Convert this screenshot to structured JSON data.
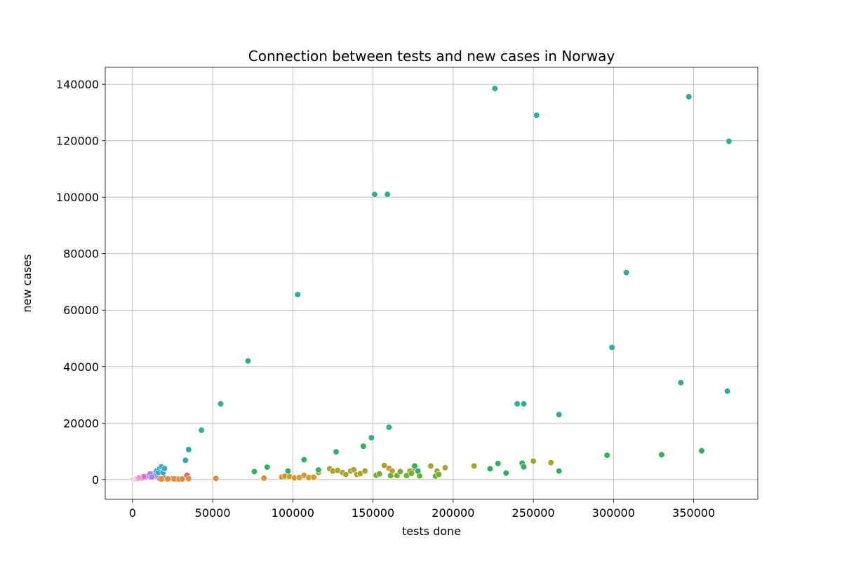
{
  "chart_data": {
    "type": "scatter",
    "title": "Connection between tests and new cases in Norway",
    "xlabel": "tests done",
    "ylabel": "new cases",
    "xlim": [
      -17000,
      390000
    ],
    "ylim": [
      -7000,
      146000
    ],
    "xticks": [
      0,
      50000,
      100000,
      150000,
      200000,
      250000,
      300000,
      350000
    ],
    "yticks": [
      0,
      20000,
      40000,
      60000,
      80000,
      100000,
      120000,
      140000
    ],
    "grid": true,
    "legend": "none",
    "groups": [
      {
        "color": "#e8665a",
        "points": [
          [
            9000,
            900
          ],
          [
            17000,
            300
          ],
          [
            20000,
            500
          ],
          [
            22000,
            300
          ],
          [
            25000,
            300
          ],
          [
            28000,
            200
          ],
          [
            34000,
            1500
          ]
        ]
      },
      {
        "color": "#e08a3a",
        "points": [
          [
            18000,
            200
          ],
          [
            22000,
            200
          ],
          [
            26000,
            200
          ],
          [
            29000,
            100
          ],
          [
            31000,
            200
          ],
          [
            35000,
            300
          ],
          [
            52000,
            400
          ],
          [
            82000,
            500
          ]
        ]
      },
      {
        "color": "#cc9a30",
        "points": [
          [
            93000,
            900
          ],
          [
            95000,
            1200
          ],
          [
            98000,
            1000
          ],
          [
            101000,
            600
          ],
          [
            104000,
            700
          ],
          [
            107000,
            1500
          ],
          [
            110000,
            700
          ],
          [
            113000,
            800
          ],
          [
            116000,
            2500
          ],
          [
            160000,
            4000
          ],
          [
            162000,
            3000
          ],
          [
            176000,
            4000
          ]
        ]
      },
      {
        "color": "#a8a433",
        "points": [
          [
            123000,
            3800
          ],
          [
            125000,
            3000
          ],
          [
            128000,
            3200
          ],
          [
            131000,
            2500
          ],
          [
            133000,
            1800
          ],
          [
            136000,
            3000
          ],
          [
            138000,
            3500
          ],
          [
            140000,
            1800
          ],
          [
            142000,
            2100
          ],
          [
            145000,
            3000
          ],
          [
            157000,
            5000
          ],
          [
            173000,
            3000
          ],
          [
            186000,
            4800
          ],
          [
            190000,
            3000
          ],
          [
            195000,
            4200
          ],
          [
            213000,
            4800
          ],
          [
            250000,
            6500
          ],
          [
            261000,
            6000
          ]
        ]
      },
      {
        "color": "#6fae37",
        "points": [
          [
            152000,
            1500
          ],
          [
            154000,
            2000
          ],
          [
            161000,
            1400
          ],
          [
            165000,
            1400
          ],
          [
            167000,
            2800
          ],
          [
            171000,
            1400
          ],
          [
            174000,
            2200
          ],
          [
            179000,
            1300
          ],
          [
            189000,
            1200
          ],
          [
            191000,
            1800
          ]
        ]
      },
      {
        "color": "#35b060",
        "points": [
          [
            76000,
            2800
          ],
          [
            84000,
            4400
          ],
          [
            97000,
            3000
          ],
          [
            107000,
            7000
          ],
          [
            116000,
            3400
          ],
          [
            127000,
            9800
          ],
          [
            144000,
            11800
          ],
          [
            178000,
            3000
          ],
          [
            223000,
            3800
          ],
          [
            228000,
            5700
          ],
          [
            233000,
            2300
          ],
          [
            243000,
            5800
          ],
          [
            244000,
            4500
          ],
          [
            266000,
            3000
          ],
          [
            296000,
            8600
          ],
          [
            330000,
            8800
          ],
          [
            355000,
            10200
          ],
          [
            176000,
            4800
          ]
        ]
      },
      {
        "color": "#33ab9a",
        "points": [
          [
            33000,
            6800
          ],
          [
            35000,
            10600
          ],
          [
            43000,
            17500
          ],
          [
            55000,
            26800
          ],
          [
            72000,
            42000
          ],
          [
            103000,
            65500
          ],
          [
            149000,
            14800
          ],
          [
            151000,
            101000
          ],
          [
            159000,
            101000
          ],
          [
            160000,
            18500
          ],
          [
            226000,
            138500
          ],
          [
            240000,
            26800
          ],
          [
            244000,
            26800
          ],
          [
            252000,
            129000
          ],
          [
            266000,
            23000
          ],
          [
            299000,
            46800
          ],
          [
            308000,
            73300
          ],
          [
            342000,
            34300
          ],
          [
            347000,
            135600
          ],
          [
            371000,
            31300
          ],
          [
            372000,
            119800
          ]
        ]
      },
      {
        "color": "#36a9c8",
        "points": [
          [
            12000,
            2000
          ],
          [
            14000,
            1200
          ],
          [
            15000,
            3000
          ],
          [
            16000,
            2500
          ],
          [
            17000,
            4000
          ],
          [
            18000,
            4500
          ],
          [
            19000,
            2500
          ],
          [
            20000,
            3900
          ],
          [
            10000,
            1500
          ]
        ]
      },
      {
        "color": "#6f8fe8",
        "points": [
          [
            8000,
            1200
          ],
          [
            9000,
            1000
          ],
          [
            11000,
            800
          ],
          [
            12000,
            1500
          ],
          [
            13000,
            1300
          ]
        ]
      },
      {
        "color": "#b37be8",
        "points": [
          [
            5000,
            700
          ],
          [
            6000,
            900
          ],
          [
            7000,
            1100
          ],
          [
            8000,
            800
          ],
          [
            10000,
            1300
          ],
          [
            11000,
            2000
          ],
          [
            12000,
            900
          ]
        ]
      },
      {
        "color": "#e06cc7",
        "points": [
          [
            2000,
            200
          ],
          [
            3000,
            300
          ],
          [
            4000,
            500
          ],
          [
            5000,
            500
          ],
          [
            6000,
            600
          ],
          [
            7000,
            1000
          ]
        ]
      },
      {
        "color": "#f096c4",
        "points": [
          [
            500,
            100
          ],
          [
            1000,
            100
          ],
          [
            1500,
            200
          ],
          [
            2000,
            300
          ],
          [
            2500,
            200
          ],
          [
            3000,
            400
          ],
          [
            3500,
            300
          ],
          [
            4000,
            600
          ]
        ]
      }
    ]
  }
}
